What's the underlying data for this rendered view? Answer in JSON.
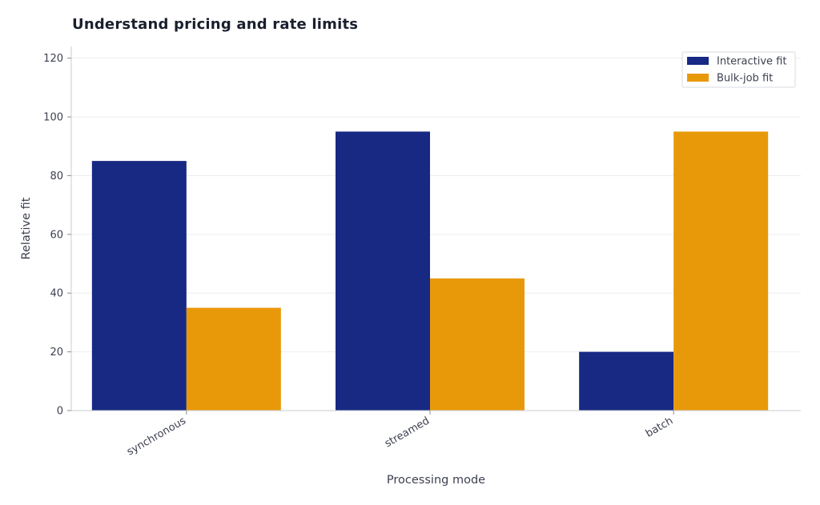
{
  "chart_data": {
    "type": "bar",
    "title": "Understand pricing and rate limits",
    "xlabel": "Processing mode",
    "ylabel": "Relative fit",
    "categories": [
      "synchronous",
      "streamed",
      "batch"
    ],
    "series": [
      {
        "name": "Interactive fit",
        "values": [
          85,
          95,
          20
        ],
        "color": "#172983"
      },
      {
        "name": "Bulk-job fit",
        "values": [
          35,
          45,
          95
        ],
        "color": "#e8990a"
      }
    ],
    "ylim": [
      0,
      124
    ],
    "yticks": [
      0,
      20,
      40,
      60,
      80,
      100,
      120
    ],
    "grid": true,
    "legend_position": "top-right"
  }
}
